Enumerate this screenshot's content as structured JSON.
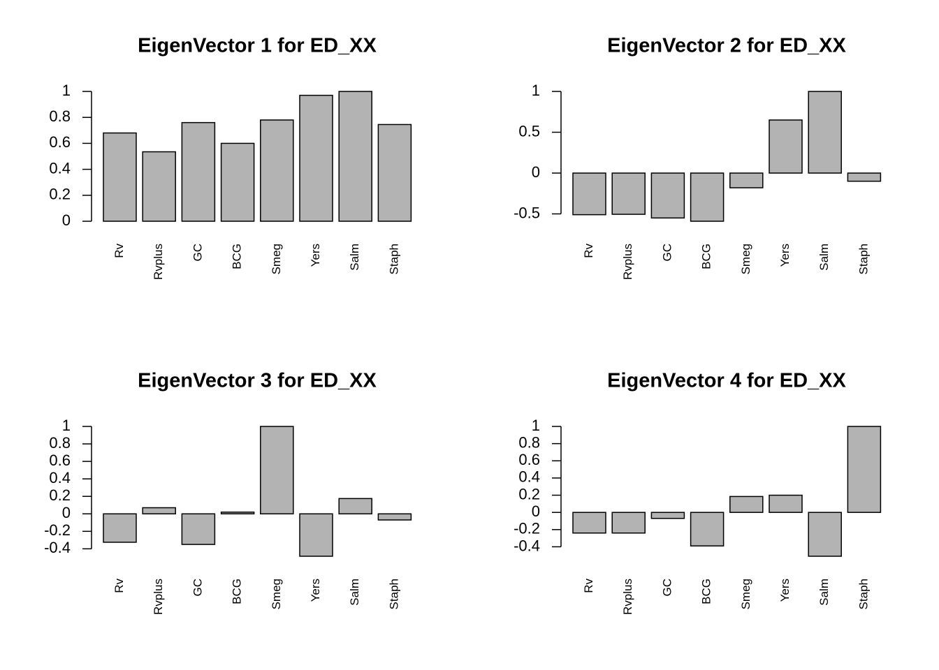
{
  "chart_data": [
    {
      "type": "bar",
      "title": "EigenVector 1 for ED_XX",
      "categories": [
        "Rv",
        "Rvplus",
        "GC",
        "BCG",
        "Smeg",
        "Yers",
        "Salm",
        "Staph"
      ],
      "values": [
        0.68,
        0.535,
        0.76,
        0.6,
        0.78,
        0.97,
        1.0,
        0.745
      ],
      "color": "#b3b3b3",
      "ylim": [
        0,
        1.0
      ],
      "yticks": [
        0.0,
        0.2,
        0.4,
        0.6,
        0.8,
        1.0
      ]
    },
    {
      "type": "bar",
      "title": "EigenVector 2 for ED_XX",
      "categories": [
        "Rv",
        "Rvplus",
        "GC",
        "BCG",
        "Smeg",
        "Yers",
        "Salm",
        "Staph"
      ],
      "values": [
        -0.51,
        -0.505,
        -0.55,
        -0.59,
        -0.18,
        0.65,
        1.0,
        -0.1
      ],
      "color": "#b3b3b3",
      "ylim": [
        -0.59,
        1.0
      ],
      "yticks": [
        -0.5,
        0.0,
        0.5,
        1.0
      ]
    },
    {
      "type": "bar",
      "title": "EigenVector 3 for ED_XX",
      "categories": [
        "Rv",
        "Rvplus",
        "GC",
        "BCG",
        "Smeg",
        "Yers",
        "Salm",
        "Staph"
      ],
      "values": [
        -0.325,
        0.07,
        -0.35,
        0.02,
        1.0,
        -0.485,
        0.175,
        -0.07
      ],
      "color": "#b3b3b3",
      "ylim": [
        -0.485,
        1.0
      ],
      "yticks": [
        -0.4,
        -0.2,
        0.0,
        0.2,
        0.4,
        0.6,
        0.8,
        1.0
      ]
    },
    {
      "type": "bar",
      "title": "EigenVector 4 for ED_XX",
      "categories": [
        "Rv",
        "Rvplus",
        "GC",
        "BCG",
        "Smeg",
        "Yers",
        "Salm",
        "Staph"
      ],
      "values": [
        -0.24,
        -0.24,
        -0.07,
        -0.39,
        0.185,
        0.2,
        -0.51,
        1.0
      ],
      "color": "#b3b3b3",
      "ylim": [
        -0.51,
        1.0
      ],
      "yticks": [
        -0.4,
        -0.2,
        0.0,
        0.2,
        0.4,
        0.6,
        0.8,
        1.0
      ]
    }
  ]
}
